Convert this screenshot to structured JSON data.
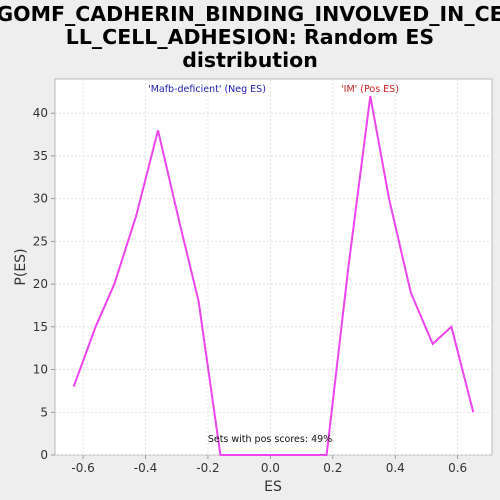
{
  "chart_data": {
    "type": "line",
    "title_lines": [
      "GOMF_CADHERIN_BINDING_INVOLVED_IN_CE",
      "LL_CELL_ADHESION: Random ES",
      "distribution"
    ],
    "xlabel": "ES",
    "ylabel": "P(ES)",
    "xlim": [
      -0.69,
      0.71
    ],
    "ylim": [
      0,
      44
    ],
    "xticks": [
      -0.6,
      -0.4,
      -0.2,
      0.0,
      0.2,
      0.4,
      0.6
    ],
    "xtick_labels": [
      "-0.6",
      "-0.4",
      "-0.2",
      "0.0",
      "0.2",
      "0.4",
      "0.6"
    ],
    "yticks": [
      0,
      5,
      10,
      15,
      20,
      25,
      30,
      35,
      40
    ],
    "ytick_labels": [
      "0",
      "5",
      "10",
      "15",
      "20",
      "25",
      "30",
      "35",
      "40"
    ],
    "grid": true,
    "line_color": "#ee44ee",
    "series": [
      {
        "x": [
          -0.63,
          -0.56,
          -0.5,
          -0.43,
          -0.36,
          -0.29,
          -0.23,
          -0.16,
          -0.09,
          -0.02,
          0.05,
          0.12,
          0.18,
          0.25,
          0.32,
          0.38,
          0.45,
          0.52,
          0.58,
          0.65
        ],
        "values": [
          8,
          15,
          20,
          28,
          38,
          27,
          18,
          0,
          0,
          0,
          0,
          0,
          0,
          22,
          42,
          30,
          19,
          13,
          15,
          5
        ]
      }
    ],
    "annotations": {
      "neg": {
        "text": "'Mafb-deficient' (Neg ES)",
        "color": "#2222aa"
      },
      "pos": {
        "text": "'IM' (Pos ES)",
        "color": "#cc2222"
      },
      "bottom": {
        "text": "Sets with pos scores: 49%",
        "color": "#111111"
      }
    }
  }
}
